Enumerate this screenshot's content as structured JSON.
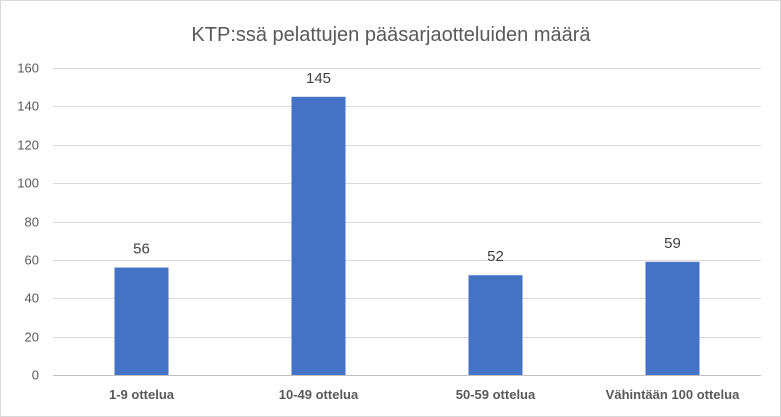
{
  "chart_data": {
    "type": "bar",
    "title": "KTP:ssä pelattujen pääsarjaotteluiden määrä",
    "categories": [
      "1-9 ottelua",
      "10-49 ottelua",
      "50-59 ottelua",
      "Vähintään 100 ottelua"
    ],
    "values": [
      56,
      145,
      52,
      59
    ],
    "data_labels": [
      "56",
      "145",
      "52",
      "59"
    ],
    "xlabel": "",
    "ylabel": "",
    "ylim": [
      0,
      160
    ],
    "yticks": [
      0,
      20,
      40,
      60,
      80,
      100,
      120,
      140,
      160
    ],
    "ytick_labels": [
      "0",
      "20",
      "40",
      "60",
      "80",
      "100",
      "120",
      "140",
      "160"
    ],
    "grid": true,
    "legend": false,
    "bar_color": "#4472c4"
  }
}
